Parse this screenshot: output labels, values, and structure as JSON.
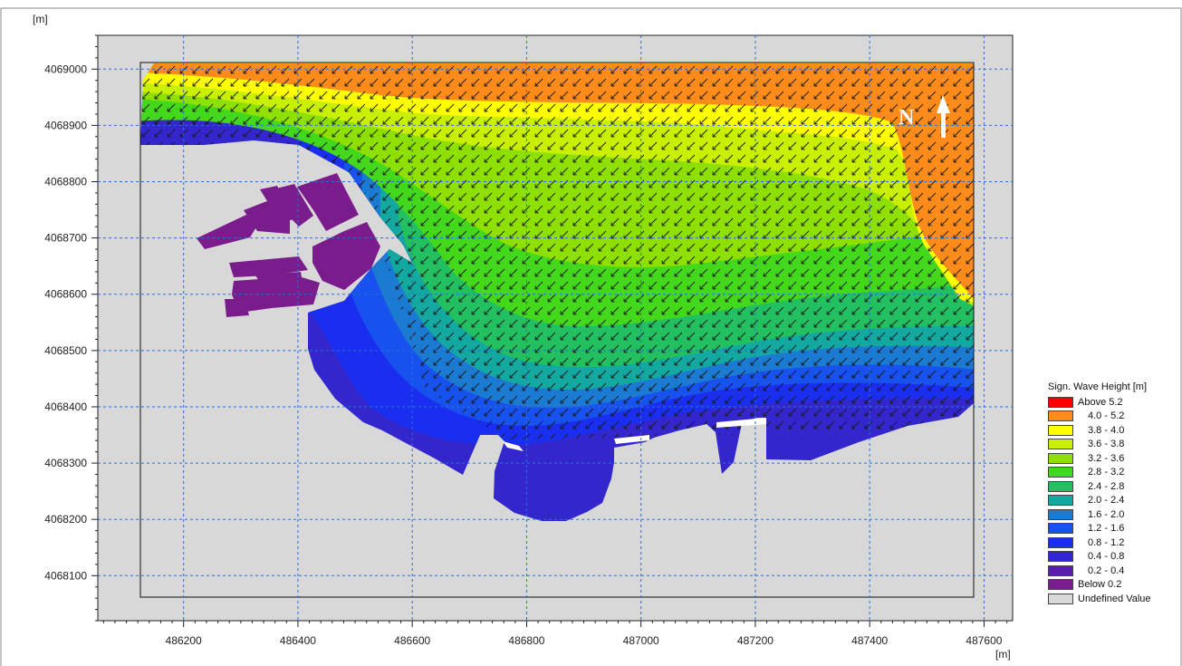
{
  "frame": {
    "y_unit_label": "[m]",
    "x_unit_label": "[m]",
    "north_label": "N"
  },
  "chart_data": {
    "type": "heatmap",
    "quantity": "Sign. Wave Height [m]",
    "xlim": [
      486050,
      487650
    ],
    "ylim": [
      4068020,
      4069060
    ],
    "x_ticks": [
      486200,
      486400,
      486600,
      486800,
      487000,
      487200,
      487400,
      487600
    ],
    "y_ticks": [
      4068100,
      4068200,
      4068300,
      4068400,
      4068500,
      4068600,
      4068700,
      4068800,
      4068900,
      4069000
    ],
    "grid": true,
    "domain_extent": {
      "x": [
        486135,
        487580
      ],
      "y": [
        4068060,
        4068995
      ]
    },
    "wave_direction": "south-west",
    "legend_position": "right"
  },
  "legend": {
    "title": "Sign. Wave Height [m]",
    "items": [
      {
        "label": "Above 5.2",
        "color": "#ff0000",
        "indent": false
      },
      {
        "label": "4.0 - 5.2",
        "color": "#ff8c1a",
        "indent": true
      },
      {
        "label": "3.8 - 4.0",
        "color": "#ffff00",
        "indent": true
      },
      {
        "label": "3.6 - 3.8",
        "color": "#c8f000",
        "indent": true
      },
      {
        "label": "3.2 - 3.6",
        "color": "#8ee000",
        "indent": true
      },
      {
        "label": "2.8 - 3.2",
        "color": "#44d81c",
        "indent": true
      },
      {
        "label": "2.4 - 2.8",
        "color": "#22c060",
        "indent": true
      },
      {
        "label": "2.0 - 2.4",
        "color": "#13a8a0",
        "indent": true
      },
      {
        "label": "1.6 - 2.0",
        "color": "#1b7ad2",
        "indent": true
      },
      {
        "label": "1.2 - 1.6",
        "color": "#1852ee",
        "indent": true
      },
      {
        "label": "0.8 - 1.2",
        "color": "#1a2ef0",
        "indent": true
      },
      {
        "label": "0.4 - 0.8",
        "color": "#3226cc",
        "indent": true
      },
      {
        "label": "0.2 - 0.4",
        "color": "#5a1cb0",
        "indent": true
      },
      {
        "label": "Below 0.2",
        "color": "#7b1c8c",
        "indent": false
      },
      {
        "label": "Undefined Value",
        "color": "#d8d8d8",
        "indent": false
      }
    ]
  }
}
